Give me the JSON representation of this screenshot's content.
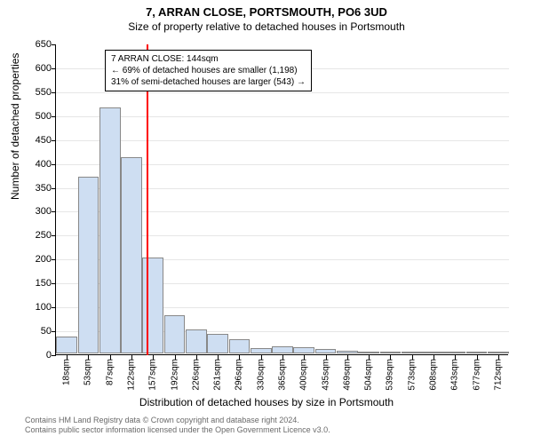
{
  "title": "7, ARRAN CLOSE, PORTSMOUTH, PO6 3UD",
  "subtitle": "Size of property relative to detached houses in Portsmouth",
  "ylabel": "Number of detached properties",
  "xlabel": "Distribution of detached houses by size in Portsmouth",
  "footer_line1": "Contains HM Land Registry data © Crown copyright and database right 2024.",
  "footer_line2": "Contains public sector information licensed under the Open Government Licence v3.0.",
  "chart": {
    "type": "histogram",
    "ylim": [
      0,
      650
    ],
    "ytick_step": 50,
    "bar_fill": "#cedef2",
    "bar_stroke": "#888888",
    "grid_color": "#e6e6e6",
    "background_color": "#ffffff",
    "marker_color": "#ff0000",
    "marker_value_index": 3.7,
    "x_labels": [
      "18sqm",
      "53sqm",
      "87sqm",
      "122sqm",
      "157sqm",
      "192sqm",
      "226sqm",
      "261sqm",
      "296sqm",
      "330sqm",
      "365sqm",
      "400sqm",
      "435sqm",
      "469sqm",
      "504sqm",
      "539sqm",
      "573sqm",
      "608sqm",
      "643sqm",
      "677sqm",
      "712sqm"
    ],
    "values": [
      35,
      370,
      515,
      410,
      200,
      80,
      50,
      40,
      30,
      12,
      15,
      13,
      10,
      5,
      4,
      2,
      3,
      1,
      2,
      1,
      0
    ],
    "annotation": {
      "line1": "7 ARRAN CLOSE: 144sqm",
      "line2": "← 69% of detached houses are smaller (1,198)",
      "line3": "31% of semi-detached houses are larger (543) →"
    }
  }
}
